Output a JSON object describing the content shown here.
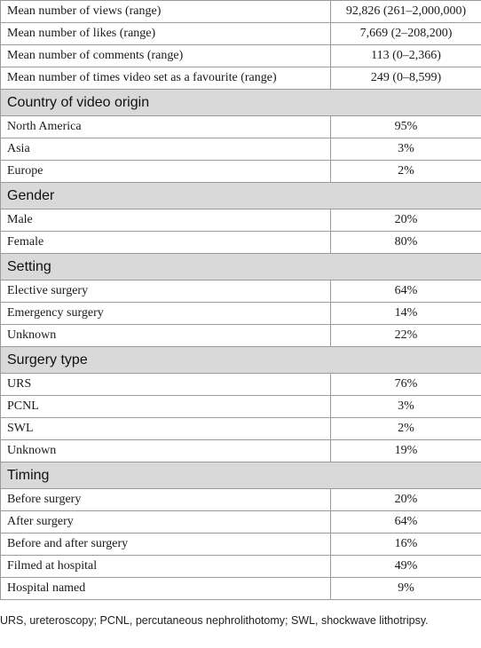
{
  "summary_rows": [
    {
      "label": "Mean number of views (range)",
      "value": "92,826 (261–2,000,000)"
    },
    {
      "label": "Mean number of likes (range)",
      "value": "7,669 (2–208,200)"
    },
    {
      "label": "Mean number of comments (range)",
      "value": "113 (0–2,366)"
    },
    {
      "label": "Mean number of times video set as a favourite (range)",
      "value": "249 (0–8,599)"
    }
  ],
  "sections": [
    {
      "title": "Country of video origin",
      "rows": [
        {
          "label": "North America",
          "value": "95%"
        },
        {
          "label": "Asia",
          "value": "3%"
        },
        {
          "label": "Europe",
          "value": "2%"
        }
      ]
    },
    {
      "title": "Gender",
      "rows": [
        {
          "label": "Male",
          "value": "20%"
        },
        {
          "label": "Female",
          "value": "80%"
        }
      ]
    },
    {
      "title": "Setting",
      "rows": [
        {
          "label": "Elective surgery",
          "value": "64%"
        },
        {
          "label": "Emergency surgery",
          "value": "14%"
        },
        {
          "label": "Unknown",
          "value": "22%"
        }
      ]
    },
    {
      "title": "Surgery type",
      "rows": [
        {
          "label": "URS",
          "value": "76%"
        },
        {
          "label": "PCNL",
          "value": "3%"
        },
        {
          "label": "SWL",
          "value": "2%"
        },
        {
          "label": "Unknown",
          "value": "19%"
        }
      ]
    },
    {
      "title": "Timing",
      "rows": [
        {
          "label": "Before surgery",
          "value": "20%"
        },
        {
          "label": "After surgery",
          "value": "64%"
        },
        {
          "label": "Before and after surgery",
          "value": "16%"
        },
        {
          "label": "Filmed at hospital",
          "value": "49%"
        },
        {
          "label": "Hospital named",
          "value": "9%"
        }
      ]
    }
  ],
  "footnote": "URS, ureteroscopy; PCNL, percutaneous nephrolithotomy; SWL, shockwave lithotripsy."
}
